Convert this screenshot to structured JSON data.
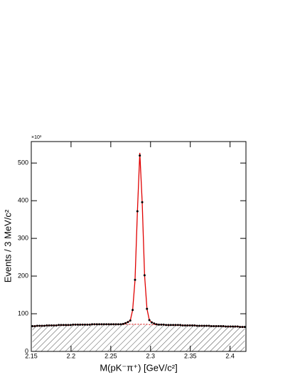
{
  "chart_data": {
    "type": "line",
    "xlabel": "M(pK⁻π⁺) [GeV/c²]",
    "ylabel": "Events / 3 MeV/c²",
    "yscale_label": "×10³",
    "xlim": [
      2.15,
      2.42
    ],
    "xticks": [
      2.15,
      2.2,
      2.25,
      2.3,
      2.35,
      2.4
    ],
    "ylim": [
      0,
      557
    ],
    "yticks": [
      0,
      100,
      200,
      300,
      400,
      500
    ],
    "x": [
      2.1515,
      2.1545,
      2.1575,
      2.1605,
      2.1635,
      2.1665,
      2.1695,
      2.1725,
      2.1755,
      2.1785,
      2.1815,
      2.1845,
      2.1875,
      2.1905,
      2.1935,
      2.1965,
      2.1995,
      2.2025,
      2.2055,
      2.2085,
      2.2115,
      2.2145,
      2.2175,
      2.2205,
      2.2235,
      2.2265,
      2.2295,
      2.2325,
      2.2355,
      2.2385,
      2.2415,
      2.2445,
      2.2475,
      2.2505,
      2.2535,
      2.2565,
      2.2595,
      2.2625,
      2.2655,
      2.2685,
      2.2715,
      2.2745,
      2.2775,
      2.2805,
      2.2835,
      2.2865,
      2.2895,
      2.2925,
      2.2955,
      2.2985,
      2.3015,
      2.3045,
      2.3075,
      2.3105,
      2.3135,
      2.3165,
      2.3195,
      2.3225,
      2.3255,
      2.3285,
      2.3315,
      2.3345,
      2.3375,
      2.3405,
      2.3435,
      2.3465,
      2.3495,
      2.3525,
      2.3555,
      2.3585,
      2.3615,
      2.3645,
      2.3675,
      2.3705,
      2.3735,
      2.3765,
      2.3795,
      2.3825,
      2.3855,
      2.3885,
      2.3915,
      2.3945,
      2.3975,
      2.4005,
      2.4035,
      2.4065,
      2.4095,
      2.4125,
      2.4155,
      2.4185
    ],
    "series": [
      {
        "kind": "background",
        "color": "#e00000",
        "values": [
          67,
          67,
          68,
          68,
          68,
          68,
          69,
          69,
          69,
          69,
          69,
          70,
          70,
          70,
          70,
          70,
          70,
          71,
          71,
          71,
          71,
          71,
          71,
          71,
          71,
          72,
          72,
          72,
          72,
          72,
          72,
          72,
          72,
          72,
          72,
          72,
          72,
          72,
          72,
          72,
          72,
          72,
          72,
          72,
          72,
          72,
          72,
          72,
          72,
          71,
          71,
          71,
          71,
          71,
          71,
          71,
          70,
          70,
          70,
          70,
          70,
          70,
          70,
          69,
          69,
          69,
          69,
          69,
          69,
          68,
          68,
          68,
          68,
          68,
          68,
          67,
          67,
          67,
          67,
          67,
          67,
          66,
          66,
          66,
          66,
          66,
          66,
          65,
          65,
          65
        ]
      },
      {
        "kind": "fit",
        "color": "#e00000",
        "values": [
          67,
          67,
          68,
          68,
          68,
          68,
          69,
          69,
          69,
          69,
          69,
          70,
          70,
          70,
          70,
          70,
          70,
          71,
          71,
          71,
          71,
          71,
          71,
          71,
          71,
          72,
          72,
          72,
          72,
          72,
          72,
          72,
          72,
          72,
          72,
          72,
          72,
          72,
          73,
          75,
          78,
          82,
          110,
          190,
          372,
          527,
          396,
          202,
          113,
          83,
          77,
          74,
          72,
          71,
          71,
          71,
          70,
          70,
          70,
          70,
          70,
          70,
          70,
          69,
          69,
          69,
          69,
          69,
          69,
          68,
          68,
          68,
          68,
          68,
          68,
          67,
          67,
          67,
          67,
          67,
          67,
          66,
          66,
          66,
          66,
          66,
          66,
          65,
          65,
          65
        ]
      },
      {
        "kind": "points",
        "color": "#000000",
        "values": [
          67,
          67,
          68,
          68,
          68,
          68,
          69,
          69,
          69,
          69,
          69,
          70,
          70,
          70,
          70,
          70,
          70,
          71,
          71,
          71,
          71,
          71,
          71,
          71,
          71,
          72,
          72,
          72,
          72,
          72,
          72,
          72,
          72,
          72,
          72,
          72,
          72,
          72,
          73,
          75,
          78,
          82,
          110,
          190,
          372,
          520,
          396,
          202,
          113,
          83,
          77,
          74,
          72,
          71,
          71,
          71,
          70,
          70,
          70,
          70,
          70,
          70,
          70,
          69,
          69,
          69,
          69,
          69,
          69,
          68,
          68,
          68,
          68,
          68,
          68,
          67,
          67,
          67,
          67,
          67,
          67,
          66,
          66,
          66,
          66,
          66,
          66,
          65,
          65,
          65
        ]
      }
    ]
  }
}
